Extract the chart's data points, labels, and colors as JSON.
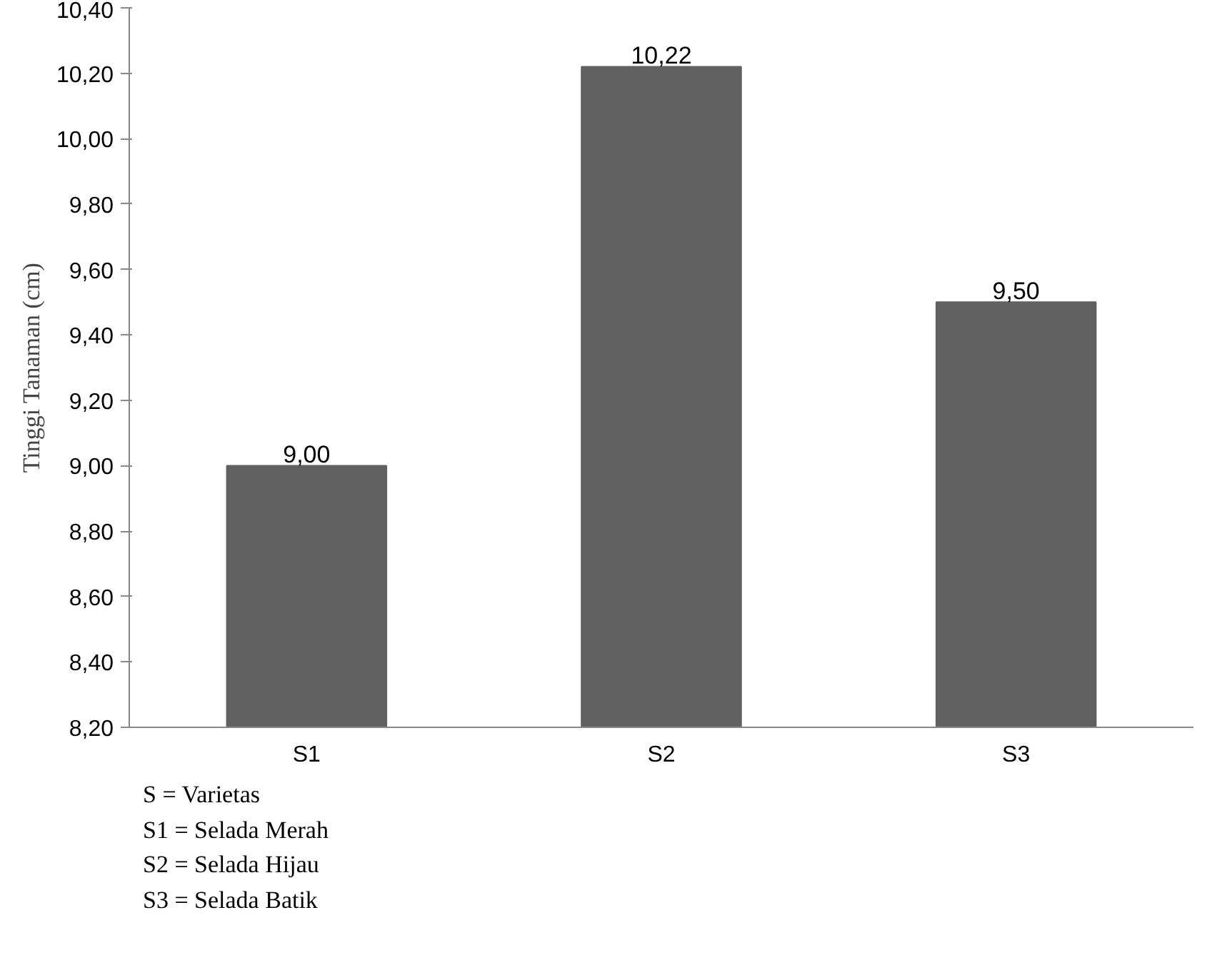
{
  "chart_data": {
    "type": "bar",
    "ylabel": "Tinggi Tanaman (cm)",
    "categories": [
      "S1",
      "S2",
      "S3"
    ],
    "values": [
      9.0,
      10.22,
      9.5
    ],
    "value_labels": [
      "9,00",
      "10,22",
      "9,50"
    ],
    "color": "#606060",
    "ylim": [
      8.2,
      10.4
    ],
    "yticks": [
      {
        "value": 8.2,
        "label": "8,20"
      },
      {
        "value": 8.4,
        "label": "8,40"
      },
      {
        "value": 8.6,
        "label": "8,60"
      },
      {
        "value": 8.8,
        "label": "8,80"
      },
      {
        "value": 9.0,
        "label": "9,00"
      },
      {
        "value": 9.2,
        "label": "9,20"
      },
      {
        "value": 9.4,
        "label": "9,40"
      },
      {
        "value": 9.6,
        "label": "9,60"
      },
      {
        "value": 9.8,
        "label": "9,80"
      },
      {
        "value": 10.0,
        "label": "10,00"
      },
      {
        "value": 10.2,
        "label": "10,20"
      },
      {
        "value": 10.4,
        "label": "10,40"
      }
    ],
    "grid": false,
    "annotations": [
      "S = Varietas",
      "S1 = Selada Merah",
      "S2 = Selada Hijau",
      "S3 = Selada Batik"
    ]
  }
}
